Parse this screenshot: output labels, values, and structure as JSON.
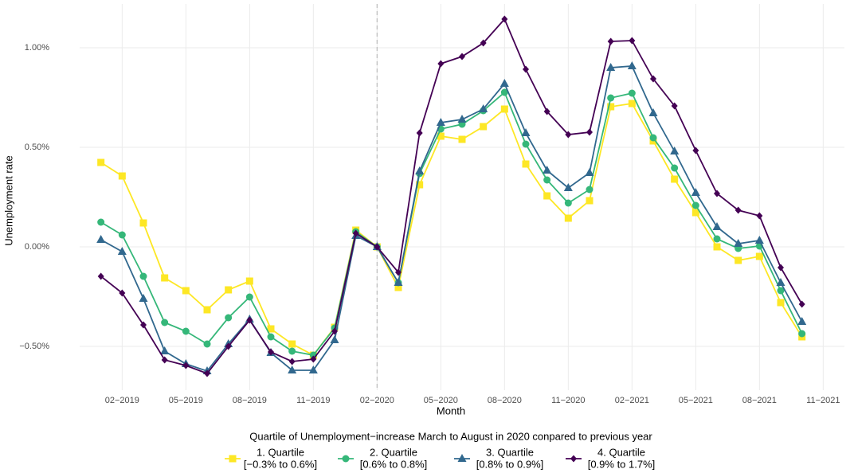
{
  "chart_data": {
    "type": "line",
    "y_label": "Unemployment  rate",
    "x_label": "Month",
    "x": [
      "2019-01",
      "2019-02",
      "2019-03",
      "2019-04",
      "2019-05",
      "2019-06",
      "2019-07",
      "2019-08",
      "2019-09",
      "2019-10",
      "2019-11",
      "2019-12",
      "2020-01",
      "2020-02",
      "2020-03",
      "2020-04",
      "2020-05",
      "2020-06",
      "2020-07",
      "2020-08",
      "2020-09",
      "2020-10",
      "2020-11",
      "2020-12",
      "2021-01",
      "2021-02",
      "2021-03",
      "2021-04",
      "2021-05",
      "2021-06",
      "2021-07",
      "2021-08",
      "2021-09",
      "2021-10"
    ],
    "xlim": [
      "2018-12",
      "2021-12"
    ],
    "xticks": [
      {
        "value": "2019-02",
        "label": "02−2019"
      },
      {
        "value": "2019-05",
        "label": "05−2019"
      },
      {
        "value": "2019-08",
        "label": "08−2019"
      },
      {
        "value": "2019-11",
        "label": "11−2019"
      },
      {
        "value": "2020-02",
        "label": "02−2020"
      },
      {
        "value": "2020-05",
        "label": "05−2020"
      },
      {
        "value": "2020-08",
        "label": "08−2020"
      },
      {
        "value": "2020-11",
        "label": "11−2020"
      },
      {
        "value": "2021-02",
        "label": "02−2021"
      },
      {
        "value": "2021-05",
        "label": "05−2021"
      },
      {
        "value": "2021-08",
        "label": "08−2021"
      },
      {
        "value": "2021-11",
        "label": "11−2021"
      }
    ],
    "ylim": [
      -0.72,
      1.22
    ],
    "yticks": [
      {
        "value": -0.5,
        "label": "−0.50%"
      },
      {
        "value": 0,
        "label": "0.00%"
      },
      {
        "value": 0.5,
        "label": "0.50%"
      },
      {
        "value": 1,
        "label": "1.00%"
      }
    ],
    "grid": true,
    "reference_line_x": "2020-02",
    "legend_title": "Quartile of Unemployment−increase March to August in 2020 conpared to previous year",
    "legend_position": "bottom",
    "series": [
      {
        "name": "1. Quartile",
        "detail": "[−0.3% to 0.6%]",
        "color": "#fde725",
        "marker": "square",
        "values": [
          0.424,
          0.356,
          0.12,
          -0.156,
          -0.22,
          -0.316,
          -0.216,
          -0.172,
          -0.412,
          -0.488,
          -0.544,
          -0.404,
          0.084,
          0,
          -0.204,
          0.312,
          0.556,
          0.54,
          0.604,
          0.692,
          0.416,
          0.256,
          0.144,
          0.232,
          0.704,
          0.72,
          0.532,
          0.34,
          0.172,
          0,
          -0.068,
          -0.048,
          -0.28,
          -0.452
        ]
      },
      {
        "name": "2. Quartile",
        "detail": "[0.6% to 0.8%]",
        "color": "#35b779",
        "marker": "circle",
        "values": [
          0.124,
          0.06,
          -0.148,
          -0.38,
          -0.424,
          -0.488,
          -0.356,
          -0.252,
          -0.452,
          -0.524,
          -0.544,
          -0.408,
          0.076,
          0,
          -0.18,
          0.368,
          0.592,
          0.616,
          0.684,
          0.776,
          0.516,
          0.336,
          0.22,
          0.288,
          0.748,
          0.772,
          0.548,
          0.396,
          0.208,
          0.04,
          -0.008,
          0.004,
          -0.22,
          -0.436
        ]
      },
      {
        "name": "3. Quartile",
        "detail": "[0.8% to 0.9%]",
        "color": "#31688e",
        "marker": "triangle",
        "values": [
          0.036,
          -0.024,
          -0.26,
          -0.524,
          -0.588,
          -0.624,
          -0.488,
          -0.364,
          -0.532,
          -0.62,
          -0.62,
          -0.468,
          0.056,
          0,
          -0.18,
          0.38,
          0.624,
          0.64,
          0.692,
          0.82,
          0.572,
          0.384,
          0.296,
          0.372,
          0.9,
          0.908,
          0.672,
          0.48,
          0.272,
          0.1,
          0.016,
          0.032,
          -0.18,
          -0.376
        ]
      },
      {
        "name": "4. Quartile",
        "detail": "[0.9% to 1.7%]",
        "color": "#440154",
        "marker": "diamond",
        "values": [
          -0.148,
          -0.232,
          -0.392,
          -0.568,
          -0.596,
          -0.636,
          -0.5,
          -0.368,
          -0.528,
          -0.576,
          -0.564,
          -0.424,
          0.068,
          0,
          -0.128,
          0.572,
          0.92,
          0.956,
          1.024,
          1.144,
          0.892,
          0.68,
          0.564,
          0.576,
          1.032,
          1.036,
          0.844,
          0.708,
          0.484,
          0.268,
          0.184,
          0.156,
          -0.104,
          -0.288
        ]
      }
    ]
  }
}
